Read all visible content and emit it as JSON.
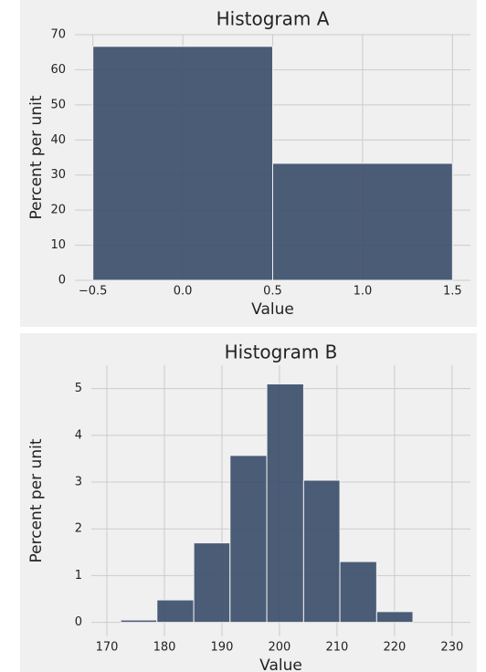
{
  "chart_data": [
    {
      "type": "histogram",
      "title": "Histogram A",
      "xlabel": "Value",
      "ylabel": "Percent per unit",
      "bins": [
        -0.5,
        0.5,
        1.5
      ],
      "values": [
        66.67,
        33.33
      ],
      "color": "#3d4f6c",
      "xlim": [
        -0.6,
        1.6
      ],
      "ylim": [
        0,
        70
      ],
      "xticks": [
        {
          "value": -0.5,
          "label": "−0.5"
        },
        {
          "value": 0,
          "label": "0.0"
        },
        0.5,
        {
          "value": 1,
          "label": "1.0"
        },
        1.5
      ],
      "yticks": [
        0,
        10,
        20,
        30,
        40,
        50,
        60,
        70
      ],
      "grid": true
    },
    {
      "type": "histogram",
      "title": "Histogram B",
      "xlabel": "Value",
      "ylabel": "Percent per unit",
      "bins": [
        172.4,
        178.7,
        185.1,
        191.4,
        197.8,
        204.2,
        210.5,
        216.9,
        223.2
      ],
      "values": [
        0.05,
        0.48,
        1.7,
        3.57,
        5.1,
        3.04,
        1.3,
        0.23
      ],
      "color": "#3d4f6c",
      "xlim": [
        167.3,
        233.2
      ],
      "ylim": [
        -0.3,
        5.5
      ],
      "xticks": [
        170,
        180,
        190,
        200,
        210,
        220,
        230
      ],
      "yticks": [
        0,
        1,
        2,
        3,
        4,
        5
      ],
      "grid": true
    }
  ]
}
